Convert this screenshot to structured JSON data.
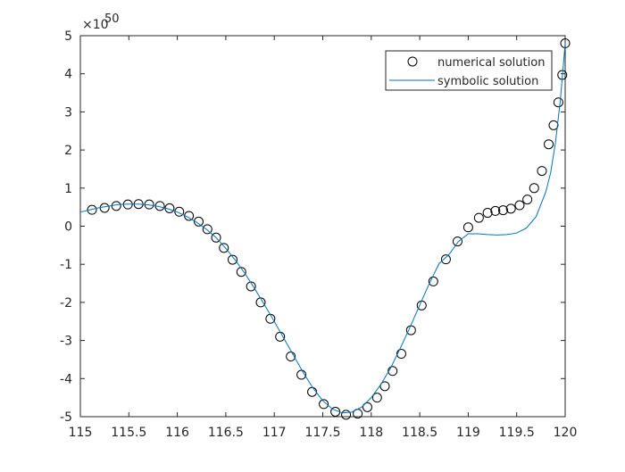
{
  "chart_data": {
    "type": "line",
    "y_multiplier_base": "×10",
    "y_multiplier_exponent": "50",
    "xlim": [
      115,
      120
    ],
    "ylim": [
      -5,
      5
    ],
    "xticks": [
      115,
      115.5,
      116,
      116.5,
      117,
      117.5,
      118,
      118.5,
      119,
      119.5,
      120
    ],
    "yticks": [
      -5,
      -4,
      -3,
      -2,
      -1,
      0,
      1,
      2,
      3,
      4,
      5
    ],
    "grid": false,
    "legend": "top-right",
    "series": [
      {
        "name": "numerical solution",
        "color": "#000000",
        "mode": "markers",
        "x": [
          115.12,
          115.25,
          115.37,
          115.49,
          115.6,
          115.71,
          115.82,
          115.92,
          116.02,
          116.12,
          116.22,
          116.31,
          116.4,
          116.48,
          116.57,
          116.66,
          116.76,
          116.86,
          116.96,
          117.06,
          117.17,
          117.28,
          117.39,
          117.51,
          117.63,
          117.74,
          117.86,
          117.96,
          118.06,
          118.14,
          118.22,
          118.31,
          118.41,
          118.52,
          118.64,
          118.77,
          118.89,
          119.0,
          119.11,
          119.2,
          119.28,
          119.36,
          119.44,
          119.53,
          119.61,
          119.68,
          119.76,
          119.83,
          119.88,
          119.93,
          119.97,
          120.0
        ],
        "values": [
          0.43,
          0.48,
          0.53,
          0.57,
          0.58,
          0.57,
          0.53,
          0.47,
          0.38,
          0.27,
          0.12,
          -0.08,
          -0.3,
          -0.57,
          -0.88,
          -1.2,
          -1.58,
          -2.0,
          -2.43,
          -2.9,
          -3.42,
          -3.9,
          -4.35,
          -4.67,
          -4.87,
          -4.95,
          -4.92,
          -4.75,
          -4.5,
          -4.2,
          -3.8,
          -3.35,
          -2.73,
          -2.08,
          -1.45,
          -0.87,
          -0.4,
          -0.03,
          0.22,
          0.35,
          0.4,
          0.42,
          0.46,
          0.55,
          0.7,
          1.0,
          1.45,
          2.15,
          2.65,
          3.25,
          3.97,
          4.8
        ]
      },
      {
        "name": "symbolic solution",
        "color": "#0072bd",
        "mode": "lines",
        "x": [
          115.0,
          115.1,
          115.2,
          115.3,
          115.4,
          115.5,
          115.6,
          115.7,
          115.8,
          115.9,
          116.0,
          116.1,
          116.2,
          116.3,
          116.4,
          116.5,
          116.6,
          116.7,
          116.8,
          116.9,
          117.0,
          117.1,
          117.2,
          117.3,
          117.4,
          117.5,
          117.6,
          117.7,
          117.8,
          117.9,
          118.0,
          118.1,
          118.2,
          118.3,
          118.4,
          118.5,
          118.6,
          118.7,
          118.8,
          118.9,
          119.0,
          119.1,
          119.2,
          119.3,
          119.4,
          119.5,
          119.6,
          119.7,
          119.8,
          119.85,
          119.9,
          119.95,
          120.0
        ],
        "values": [
          0.37,
          0.43,
          0.49,
          0.53,
          0.57,
          0.58,
          0.58,
          0.56,
          0.52,
          0.46,
          0.37,
          0.25,
          0.1,
          -0.08,
          -0.3,
          -0.58,
          -0.9,
          -1.25,
          -1.65,
          -2.07,
          -2.5,
          -2.95,
          -3.4,
          -3.85,
          -4.25,
          -4.58,
          -4.8,
          -4.9,
          -4.88,
          -4.75,
          -4.5,
          -4.15,
          -3.72,
          -3.2,
          -2.65,
          -2.07,
          -1.5,
          -0.98,
          -0.75,
          -0.4,
          -0.2,
          -0.2,
          -0.22,
          -0.23,
          -0.22,
          -0.18,
          -0.05,
          0.25,
          0.9,
          1.4,
          2.2,
          3.3,
          4.8
        ]
      }
    ]
  }
}
